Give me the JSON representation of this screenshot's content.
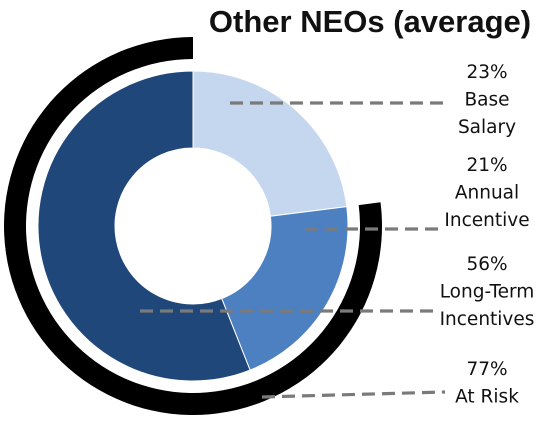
{
  "chart_data": {
    "type": "pie",
    "title": "Other NEOs (average)",
    "unit": "%",
    "categories": [
      "Base Salary",
      "Annual Incentive",
      "Long-Term Incentives"
    ],
    "values": [
      23,
      21,
      56
    ],
    "slice_colors": [
      "#c5d7ee",
      "#4d80c1",
      "#1f477a"
    ],
    "slices": [
      {
        "pct": "23%",
        "lines": [
          "Base",
          "Salary"
        ]
      },
      {
        "pct": "21%",
        "lines": [
          "Annual",
          "Incentive"
        ]
      },
      {
        "pct": "56%",
        "lines": [
          "Long-Term",
          "Incentives"
        ]
      }
    ],
    "at_risk": {
      "value": 77,
      "pct": "77%",
      "lines": [
        "At Risk"
      ],
      "color": "#000000"
    },
    "leader_color": "#7a7a7a",
    "donut_hole": true,
    "legend": "none"
  }
}
